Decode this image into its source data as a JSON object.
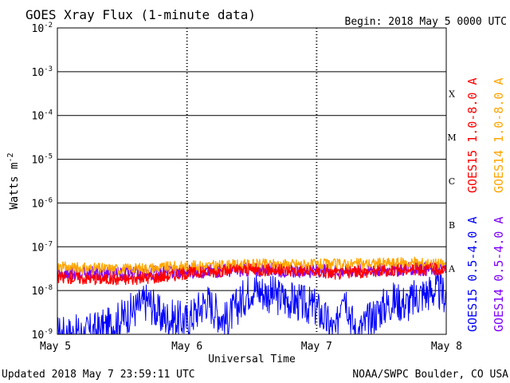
{
  "chart_data": {
    "type": "line",
    "title": "GOES Xray Flux (1-minute data)",
    "begin_label": "Begin:  2018 May 5 0000 UTC",
    "xlabel": "Universal Time",
    "ylabel": "Watts m",
    "ylabel_exponent": "-2",
    "y_scale": "log",
    "ylim": [
      1e-09,
      0.01
    ],
    "y_ticks": [
      {
        "base": "10",
        "exp": "-2",
        "value": 0.01
      },
      {
        "base": "10",
        "exp": "-3",
        "value": 0.001
      },
      {
        "base": "10",
        "exp": "-4",
        "value": 0.0001
      },
      {
        "base": "10",
        "exp": "-5",
        "value": 1e-05
      },
      {
        "base": "10",
        "exp": "-6",
        "value": 1e-06
      },
      {
        "base": "10",
        "exp": "-7",
        "value": 1e-07
      },
      {
        "base": "10",
        "exp": "-8",
        "value": 1e-08
      },
      {
        "base": "10",
        "exp": "-9",
        "value": 1e-09
      }
    ],
    "x_ticks": [
      "May 5",
      "May 6",
      "May 7",
      "May 8"
    ],
    "xlim_days": [
      0,
      3
    ],
    "flare_classes": [
      {
        "label": "X",
        "value": 0.000316
      },
      {
        "label": "M",
        "value": 3.16e-05
      },
      {
        "label": "C",
        "value": 3.16e-06
      },
      {
        "label": "B",
        "value": 3.16e-07
      },
      {
        "label": "A",
        "value": 3.16e-08
      }
    ],
    "series": [
      {
        "name": "GOES15 1.0-8.0 A",
        "color": "#ff0000",
        "x_days": [
          0,
          0.25,
          0.5,
          0.75,
          1.0,
          1.25,
          1.5,
          1.75,
          2.0,
          2.2,
          2.25,
          2.5,
          2.75,
          3.0
        ],
        "values": [
          2e-08,
          1.9e-08,
          1.8e-08,
          2e-08,
          2.5e-08,
          2.8e-08,
          3e-08,
          2.9e-08,
          2.7e-08,
          2.4e-08,
          2.6e-08,
          2.8e-08,
          3.1e-08,
          3e-08
        ]
      },
      {
        "name": "GOES14 1.0-8.0 A",
        "color": "#ffa500",
        "x_days": [
          0,
          0.25,
          0.5,
          0.75,
          1.0,
          1.25,
          1.5,
          1.75,
          2.0,
          2.25,
          2.5,
          2.75,
          3.0
        ],
        "values": [
          3.4e-08,
          3.2e-08,
          3.1e-08,
          3.3e-08,
          3.6e-08,
          3.7e-08,
          3.9e-08,
          4e-08,
          3.9e-08,
          4e-08,
          4.2e-08,
          4.3e-08,
          4e-08
        ]
      },
      {
        "name": "GOES15 0.5-4.0 A",
        "color": "#0000ff",
        "x_days": [
          0,
          0.2,
          0.4,
          0.55,
          0.7,
          0.8,
          1.0,
          1.15,
          1.3,
          1.5,
          1.6,
          1.8,
          2.0,
          2.15,
          2.2,
          2.3,
          2.4,
          2.5,
          2.6,
          2.7,
          2.8,
          2.9,
          3.0
        ],
        "values": [
          1e-09,
          1e-09,
          1.5e-09,
          3e-09,
          6e-09,
          2.5e-09,
          2e-09,
          6e-09,
          2e-09,
          1.2e-08,
          9e-09,
          6e-09,
          4e-09,
          1e-09,
          1.5e-08,
          1e-09,
          2e-09,
          4e-09,
          6e-09,
          5e-09,
          8e-09,
          1e-08,
          8e-09
        ]
      },
      {
        "name": "GOES14 0.5-4.0 A",
        "color": "#7f00ff",
        "x_days": [
          0,
          0.5,
          1.0,
          1.5,
          2.0,
          2.5,
          3.0
        ],
        "values": [
          2.6e-08,
          2.4e-08,
          2.7e-08,
          3e-08,
          2.8e-08,
          3e-08,
          3.2e-08
        ]
      }
    ],
    "grid": true
  },
  "footer": {
    "updated": "Updated 2018 May  7 23:59:11 UTC",
    "credit": "NOAA/SWPC Boulder, CO USA"
  }
}
